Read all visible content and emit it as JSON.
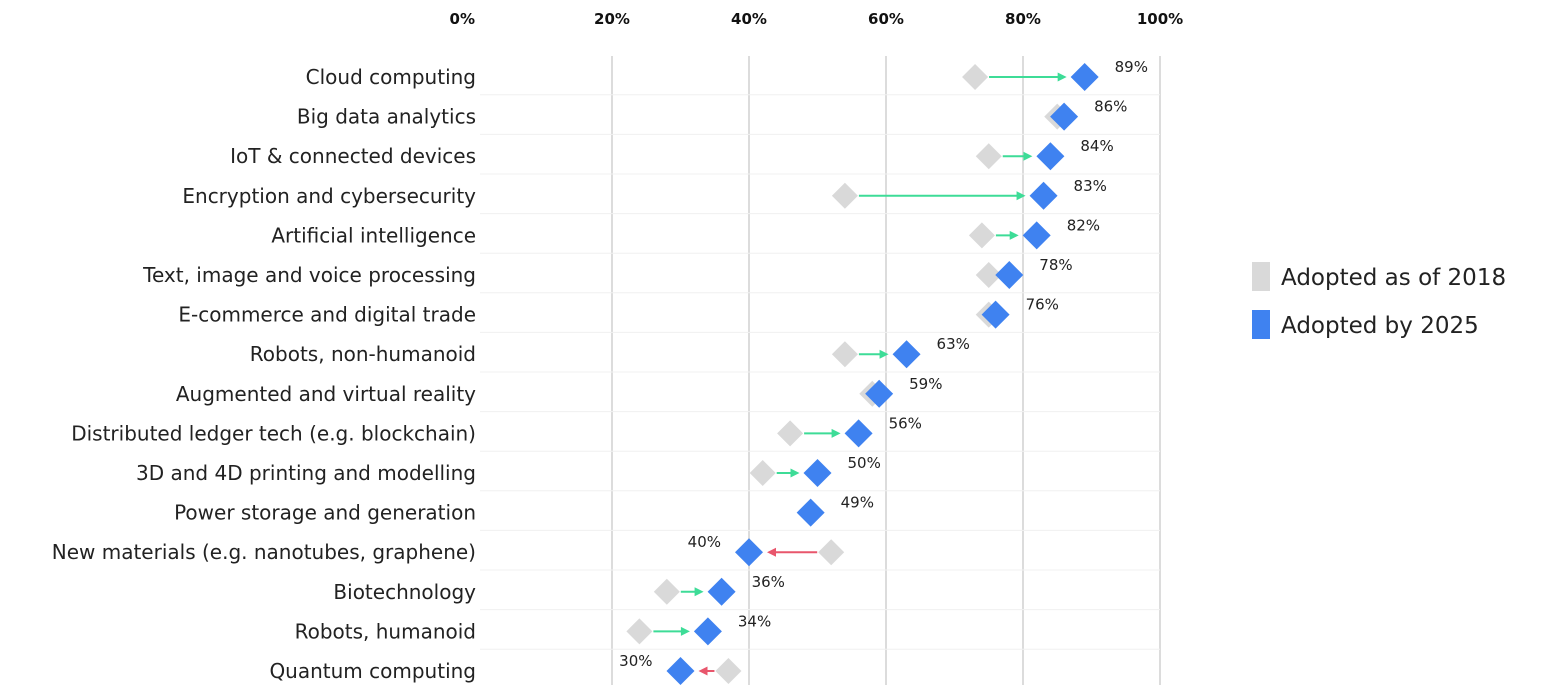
{
  "chart_data": {
    "type": "dumbbell",
    "title": "",
    "xlabel": "",
    "ylabel": "",
    "xlim": [
      0,
      100
    ],
    "x_ticks": [
      "0%",
      "20%",
      "40%",
      "60%",
      "80%",
      "100%"
    ],
    "grid": "vertical",
    "legend_position": "right",
    "series": [
      {
        "name": "Adopted as of 2018",
        "color": "#d9d9d9",
        "marker": "diamond"
      },
      {
        "name": "Adopted by 2025",
        "color": "#3f82f0",
        "marker": "diamond"
      }
    ],
    "arrow_colors": {
      "increase": "#3ddc97",
      "decrease": "#e8566c"
    },
    "categories": [
      "Cloud computing",
      "Big data analytics",
      "IoT & connected devices",
      "Encryption and cybersecurity",
      "Artificial intelligence",
      "Text, image and voice processing",
      "E-commerce and digital trade",
      "Robots, non-humanoid",
      "Augmented and virtual reality",
      "Distributed ledger tech (e.g. blockchain)",
      "3D and 4D printing and modelling",
      "Power storage and generation",
      "New materials (e.g. nanotubes, graphene)",
      "Biotechnology",
      "Robots, humanoid",
      "Quantum computing"
    ],
    "values_2018": [
      73,
      85,
      75,
      54,
      74,
      75,
      75,
      54,
      58,
      46,
      42,
      49,
      52,
      28,
      24,
      37
    ],
    "values_2025": [
      89,
      86,
      84,
      83,
      82,
      78,
      76,
      63,
      59,
      56,
      50,
      49,
      40,
      36,
      34,
      30
    ],
    "data_labels": [
      "89%",
      "86%",
      "84%",
      "83%",
      "82%",
      "78%",
      "76%",
      "63%",
      "59%",
      "56%",
      "50%",
      "49%",
      "40%",
      "36%",
      "34%",
      "30%"
    ]
  }
}
